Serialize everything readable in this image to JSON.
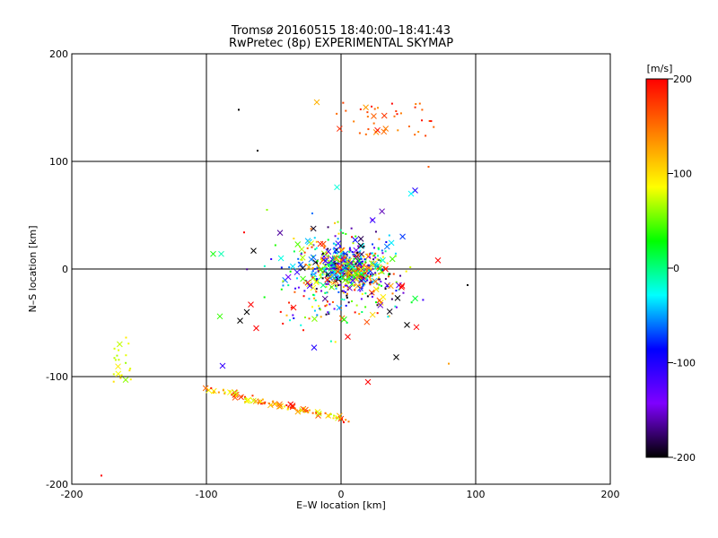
{
  "chart_data": {
    "type": "scatter",
    "title": "Tromsø 20160515 18:40:00–18:41:43",
    "subtitle": "RwPretec (8p) EXPERIMENTAL SKYMAP",
    "xlabel": "E–W location [km]",
    "ylabel": "N–S location [km]",
    "xlim": [
      -200,
      200
    ],
    "ylim": [
      -200,
      200
    ],
    "xticks": [
      -200,
      -100,
      0,
      100,
      200
    ],
    "yticks": [
      -200,
      -100,
      0,
      100,
      200
    ],
    "grid": true,
    "colorbar": {
      "label": "[m/s]",
      "min": -200,
      "max": 200,
      "ticks": [
        200,
        100,
        0,
        -100,
        -200
      ],
      "colors": [
        "#000000",
        "#7f00ff",
        "#0000ff",
        "#00ffff",
        "#00ff00",
        "#ffff00",
        "#ff7f00",
        "#ff0000"
      ]
    },
    "marker_types": [
      "dot",
      "x"
    ],
    "clusters": [
      {
        "region": "north",
        "x_range": [
          -5,
          70
        ],
        "y_range": [
          120,
          155
        ],
        "v_range": [
          130,
          200
        ],
        "count": 40
      },
      {
        "region": "central",
        "x_range": [
          -40,
          50
        ],
        "y_range": [
          -30,
          30
        ],
        "v_range": [
          -200,
          200
        ],
        "count": 420
      },
      {
        "region": "inner",
        "x_range": [
          -90,
          90
        ],
        "y_range": [
          -85,
          75
        ],
        "v_range": [
          -200,
          200
        ],
        "count": 330
      },
      {
        "region": "south-arc",
        "x_range": [
          -100,
          5
        ],
        "y_range": [
          -155,
          -110
        ],
        "v_range": [
          70,
          200
        ],
        "count": 110
      },
      {
        "region": "west",
        "x_range": [
          -170,
          -155
        ],
        "y_range": [
          -105,
          -60
        ],
        "v_range": [
          60,
          110
        ],
        "count": 20
      }
    ],
    "points": [
      {
        "x": -76,
        "y": 148,
        "v": -200,
        "m": "dot"
      },
      {
        "x": -18,
        "y": 155,
        "v": 120,
        "m": "x"
      },
      {
        "x": 94,
        "y": -15,
        "v": -200,
        "m": "dot"
      },
      {
        "x": -178,
        "y": -192,
        "v": 200,
        "m": "dot"
      },
      {
        "x": -88,
        "y": -90,
        "v": -110,
        "m": "x"
      },
      {
        "x": 80,
        "y": -88,
        "v": 130,
        "m": "dot"
      },
      {
        "x": 20,
        "y": -105,
        "v": 200,
        "m": "x"
      },
      {
        "x": -160,
        "y": -103,
        "v": 60,
        "m": "x"
      },
      {
        "x": -90,
        "y": -44,
        "v": 40,
        "m": "x"
      },
      {
        "x": -95,
        "y": 14,
        "v": 30,
        "m": "x"
      },
      {
        "x": -89,
        "y": 14,
        "v": -10,
        "m": "x"
      },
      {
        "x": -72,
        "y": 34,
        "v": 200,
        "m": "dot"
      },
      {
        "x": -65,
        "y": 17,
        "v": -200,
        "m": "x"
      },
      {
        "x": -62,
        "y": 110,
        "v": -200,
        "m": "dot"
      },
      {
        "x": -55,
        "y": 55,
        "v": 60,
        "m": "dot"
      },
      {
        "x": 55,
        "y": 73,
        "v": -100,
        "m": "x"
      },
      {
        "x": 52,
        "y": 70,
        "v": -30,
        "m": "x"
      },
      {
        "x": 72,
        "y": 8,
        "v": 200,
        "m": "x"
      },
      {
        "x": 65,
        "y": 95,
        "v": 160,
        "m": "dot"
      },
      {
        "x": -3,
        "y": 76,
        "v": -20,
        "m": "x"
      },
      {
        "x": 42,
        "y": -27,
        "v": -200,
        "m": "x"
      },
      {
        "x": 41,
        "y": -82,
        "v": -200,
        "m": "x"
      },
      {
        "x": -20,
        "y": -73,
        "v": -100,
        "m": "x"
      },
      {
        "x": 5,
        "y": -63,
        "v": 200,
        "m": "x"
      },
      {
        "x": -75,
        "y": -48,
        "v": -200,
        "m": "x"
      },
      {
        "x": -63,
        "y": -55,
        "v": 200,
        "m": "x"
      },
      {
        "x": -70,
        "y": -40,
        "v": -200,
        "m": "x"
      },
      {
        "x": -67,
        "y": -33,
        "v": 200,
        "m": "x"
      },
      {
        "x": 33,
        "y": 0,
        "v": 200,
        "m": "x"
      },
      {
        "x": 45,
        "y": -17,
        "v": 200,
        "m": "x"
      },
      {
        "x": 56,
        "y": -54,
        "v": 200,
        "m": "x"
      },
      {
        "x": 49,
        "y": -52,
        "v": -200,
        "m": "x"
      }
    ]
  }
}
